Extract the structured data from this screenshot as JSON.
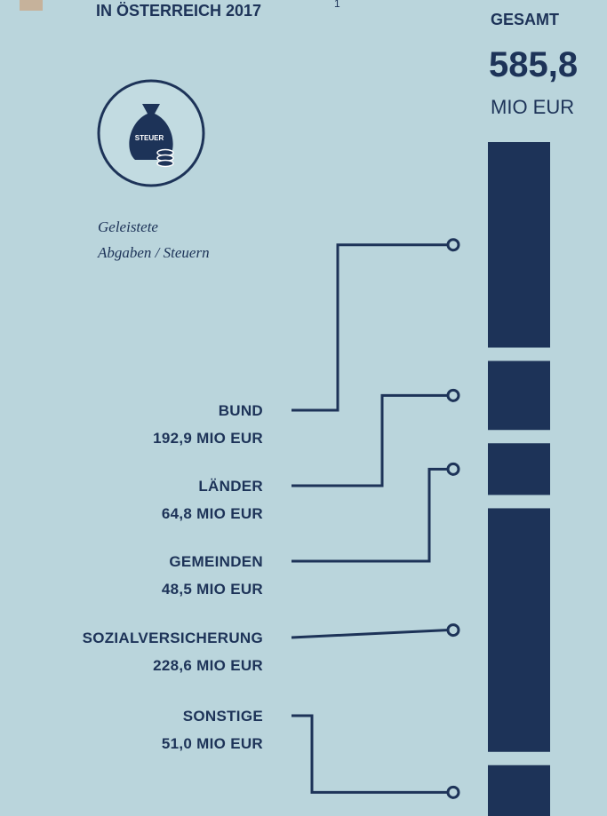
{
  "chart_data": {
    "type": "stacked_bar",
    "title": "IN ÖSTERREICH 2017",
    "title_note": "1",
    "total_heading": "GESAMT",
    "total": "585,8",
    "total_unit": "MIO EUR",
    "icon_label": "STEUER",
    "caption": [
      "Geleistete",
      "Abgaben / Steuern"
    ],
    "categories": [
      "BUND",
      "LÄNDER",
      "GEMEINDEN",
      "SOZIALVERSICHERUNG",
      "SONSTIGE"
    ],
    "values": [
      192.9,
      64.8,
      48.5,
      228.6,
      51.0
    ],
    "value_labels": [
      "192,9 MIO EUR",
      "64,8 MIO EUR",
      "48,5 MIO EUR",
      "228,6 MIO EUR",
      "51,0 MIO EUR"
    ],
    "color": "#1d3358"
  }
}
